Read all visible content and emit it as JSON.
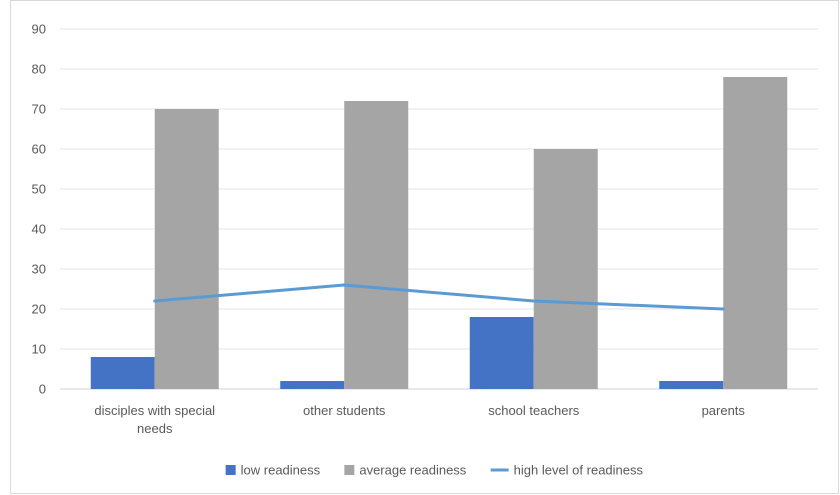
{
  "chart_data": {
    "type": "bar",
    "categories": [
      [
        "disciples with special",
        "needs"
      ],
      [
        "other students"
      ],
      [
        "school teachers"
      ],
      [
        "parents"
      ]
    ],
    "series": [
      {
        "name": "low readiness",
        "kind": "bar",
        "color": "#4472c4",
        "values": [
          8,
          2,
          18,
          2
        ]
      },
      {
        "name": "average readiness",
        "kind": "bar",
        "color": "#a5a5a5",
        "values": [
          70,
          72,
          60,
          78
        ]
      },
      {
        "name": "high level of readiness",
        "kind": "line",
        "color": "#5b9bd5",
        "values": [
          22,
          26,
          22,
          20
        ]
      }
    ],
    "yticks": [
      0,
      10,
      20,
      30,
      40,
      50,
      60,
      70,
      80,
      90
    ],
    "ylim": [
      0,
      90
    ],
    "grid": true,
    "legend": "bottom"
  }
}
